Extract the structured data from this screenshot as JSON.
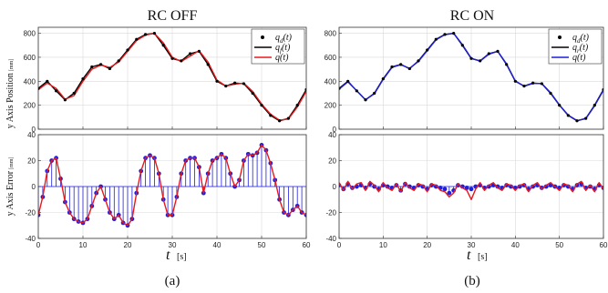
{
  "chart_data": [
    {
      "type": "line",
      "panel": "a-position",
      "title": "RC OFF",
      "ylabel": "y Axis Position",
      "yunit": "[mm]",
      "xlim": [
        0,
        60
      ],
      "ylim": [
        0,
        850
      ],
      "xticks": [
        0,
        10,
        20,
        30,
        40,
        50,
        60
      ],
      "yticks": [
        0,
        200,
        400,
        600,
        800
      ],
      "grid": true,
      "legend": {
        "position": "top-right",
        "entries": [
          "q_d(t)",
          "q_f(t)",
          "q(t)"
        ]
      },
      "x": [
        0,
        2,
        4,
        6,
        8,
        10,
        12,
        14,
        16,
        18,
        20,
        22,
        24,
        26,
        28,
        30,
        32,
        34,
        36,
        38,
        40,
        42,
        44,
        46,
        48,
        50,
        52,
        54,
        56,
        58,
        60
      ],
      "series": [
        {
          "name": "q_d(t)",
          "color": "#000000",
          "style": "dots",
          "values": [
            340,
            400,
            320,
            245,
            300,
            420,
            520,
            540,
            505,
            570,
            660,
            750,
            790,
            800,
            700,
            590,
            570,
            630,
            650,
            540,
            400,
            360,
            385,
            380,
            300,
            200,
            115,
            70,
            90,
            200,
            330
          ]
        },
        {
          "name": "q_f(t)",
          "color": "#000000",
          "style": "line",
          "values": [
            340,
            400,
            320,
            245,
            300,
            420,
            520,
            540,
            505,
            570,
            660,
            750,
            790,
            800,
            700,
            590,
            570,
            630,
            650,
            540,
            400,
            360,
            385,
            380,
            300,
            200,
            115,
            70,
            90,
            200,
            330
          ]
        },
        {
          "name": "q(t)",
          "color": "#e8191c",
          "style": "line",
          "values": [
            330,
            385,
            340,
            250,
            280,
            400,
            500,
            535,
            515,
            560,
            650,
            740,
            785,
            800,
            720,
            600,
            565,
            610,
            655,
            560,
            410,
            360,
            375,
            385,
            315,
            210,
            125,
            75,
            85,
            185,
            315
          ]
        }
      ]
    },
    {
      "type": "line",
      "panel": "a-error",
      "ylabel": "y Axis Error",
      "yunit": "[mm]",
      "xlabel": "t",
      "xunit": "[s]",
      "xlim": [
        0,
        60
      ],
      "ylim": [
        -40,
        40
      ],
      "xticks": [
        0,
        10,
        20,
        30,
        40,
        50,
        60
      ],
      "yticks": [
        -40,
        -20,
        0,
        20,
        40
      ],
      "grid": true,
      "x": [
        0,
        1,
        2,
        3,
        4,
        5,
        6,
        7,
        8,
        9,
        10,
        11,
        12,
        13,
        14,
        15,
        16,
        17,
        18,
        19,
        20,
        21,
        22,
        23,
        24,
        25,
        26,
        27,
        28,
        29,
        30,
        31,
        32,
        33,
        34,
        35,
        36,
        37,
        38,
        39,
        40,
        41,
        42,
        43,
        44,
        45,
        46,
        47,
        48,
        49,
        50,
        51,
        52,
        53,
        54,
        55,
        56,
        57,
        58,
        59,
        60
      ],
      "series": [
        {
          "name": "sampled error",
          "color": "#1f1fdd",
          "style": "stem",
          "values": [
            -22,
            -8,
            12,
            20,
            22,
            6,
            -12,
            -20,
            -25,
            -27,
            -28,
            -25,
            -15,
            -5,
            0,
            -10,
            -20,
            -25,
            -22,
            -28,
            -30,
            -25,
            -5,
            12,
            22,
            24,
            22,
            10,
            -10,
            -22,
            -22,
            -8,
            10,
            20,
            22,
            22,
            15,
            -5,
            10,
            20,
            22,
            25,
            22,
            10,
            0,
            5,
            20,
            25,
            24,
            26,
            32,
            28,
            18,
            5,
            -10,
            -20,
            -22,
            -18,
            -15,
            -20,
            -22
          ]
        },
        {
          "name": "continuous error",
          "color": "#e8191c",
          "style": "line",
          "values": [
            -22,
            -8,
            12,
            20,
            22,
            6,
            -12,
            -20,
            -25,
            -27,
            -28,
            -25,
            -15,
            -5,
            0,
            -10,
            -20,
            -25,
            -22,
            -28,
            -30,
            -25,
            -5,
            12,
            22,
            24,
            22,
            10,
            -10,
            -22,
            -22,
            -8,
            10,
            20,
            22,
            22,
            15,
            -5,
            10,
            20,
            22,
            25,
            22,
            10,
            0,
            5,
            20,
            25,
            24,
            26,
            32,
            28,
            18,
            5,
            -10,
            -20,
            -22,
            -18,
            -15,
            -20,
            -22
          ]
        }
      ]
    },
    {
      "type": "line",
      "panel": "b-position",
      "title": "RC ON",
      "xlim": [
        0,
        60
      ],
      "ylim": [
        0,
        850
      ],
      "xticks": [
        0,
        10,
        20,
        30,
        40,
        50,
        60
      ],
      "yticks": [
        0,
        200,
        400,
        600,
        800
      ],
      "grid": true,
      "legend": {
        "position": "top-right",
        "entries": [
          "q_d(t)",
          "q_r(t)",
          "q(t)"
        ]
      },
      "x": [
        0,
        2,
        4,
        6,
        8,
        10,
        12,
        14,
        16,
        18,
        20,
        22,
        24,
        26,
        28,
        30,
        32,
        34,
        36,
        38,
        40,
        42,
        44,
        46,
        48,
        50,
        52,
        54,
        56,
        58,
        60
      ],
      "series": [
        {
          "name": "q_d(t)",
          "color": "#000000",
          "style": "dots",
          "values": [
            340,
            400,
            320,
            245,
            300,
            420,
            520,
            540,
            505,
            570,
            660,
            750,
            790,
            800,
            700,
            590,
            570,
            630,
            650,
            540,
            400,
            360,
            385,
            380,
            300,
            200,
            115,
            70,
            90,
            200,
            330
          ]
        },
        {
          "name": "q_r(t)",
          "color": "#000000",
          "style": "line",
          "values": [
            340,
            400,
            320,
            245,
            300,
            420,
            520,
            540,
            505,
            570,
            660,
            750,
            790,
            800,
            700,
            590,
            570,
            630,
            650,
            540,
            400,
            360,
            385,
            380,
            300,
            200,
            115,
            70,
            90,
            200,
            330
          ]
        },
        {
          "name": "q(t)",
          "color": "#1f1fdd",
          "style": "line",
          "values": [
            335,
            395,
            322,
            245,
            295,
            415,
            515,
            538,
            508,
            565,
            655,
            745,
            788,
            800,
            705,
            592,
            568,
            625,
            650,
            545,
            403,
            358,
            382,
            382,
            305,
            203,
            118,
            72,
            88,
            195,
            325
          ]
        }
      ]
    },
    {
      "type": "line",
      "panel": "b-error",
      "xlabel": "t",
      "xunit": "[s]",
      "xlim": [
        0,
        60
      ],
      "ylim": [
        -40,
        40
      ],
      "xticks": [
        0,
        10,
        20,
        30,
        40,
        50,
        60
      ],
      "yticks": [
        -40,
        -20,
        0,
        20,
        40
      ],
      "grid": true,
      "x": [
        0,
        1,
        2,
        3,
        4,
        5,
        6,
        7,
        8,
        9,
        10,
        11,
        12,
        13,
        14,
        15,
        16,
        17,
        18,
        19,
        20,
        21,
        22,
        23,
        24,
        25,
        26,
        27,
        28,
        29,
        30,
        31,
        32,
        33,
        34,
        35,
        36,
        37,
        38,
        39,
        40,
        41,
        42,
        43,
        44,
        45,
        46,
        47,
        48,
        49,
        50,
        51,
        52,
        53,
        54,
        55,
        56,
        57,
        58,
        59,
        60
      ],
      "series": [
        {
          "name": "sampled error",
          "color": "#1f1fdd",
          "style": "stem",
          "values": [
            1,
            -2,
            2,
            -1,
            0,
            1,
            -1,
            2,
            0,
            -2,
            1,
            0,
            -1,
            1,
            -3,
            2,
            0,
            -1,
            1,
            0,
            -2,
            1,
            0,
            -1,
            -2,
            -5,
            -3,
            1,
            0,
            -1,
            -2,
            0,
            1,
            -1,
            0,
            1,
            0,
            -1,
            1,
            0,
            -1,
            0,
            1,
            -2,
            0,
            1,
            -1,
            0,
            1,
            0,
            -1,
            1,
            0,
            -2,
            1,
            2,
            -1,
            0,
            -2,
            1,
            -1
          ]
        },
        {
          "name": "continuous error",
          "color": "#e8191c",
          "style": "line",
          "values": [
            3,
            -3,
            4,
            -2,
            2,
            3,
            -3,
            4,
            1,
            -4,
            3,
            -1,
            -3,
            2,
            -4,
            3,
            -1,
            -3,
            2,
            1,
            -4,
            2,
            1,
            -3,
            -4,
            -8,
            -5,
            2,
            -1,
            -3,
            -10,
            -2,
            3,
            -3,
            1,
            3,
            -1,
            -3,
            2,
            1,
            -3,
            1,
            2,
            -4,
            1,
            3,
            -2,
            1,
            3,
            0,
            -3,
            2,
            1,
            -4,
            2,
            4,
            -3,
            1,
            -4,
            3,
            -2
          ]
        }
      ]
    }
  ],
  "labels": {
    "title_a": "RC OFF",
    "title_b": "RC ON",
    "ylabel_pos": "y Axis Position",
    "ylabel_err": "y Axis Error",
    "yunit": "[mm]",
    "xlabel": "t",
    "xunit": "[s]",
    "caption_a": "(a)",
    "caption_b": "(b)"
  },
  "legend_a": [
    {
      "base": "q",
      "sub": "d",
      "tail": "(t)"
    },
    {
      "base": "q",
      "sub": "f",
      "tail": "(t)"
    },
    {
      "base": "q",
      "sub": "",
      "tail": "(t)"
    }
  ],
  "legend_b": [
    {
      "base": "q",
      "sub": "d",
      "tail": "(t)"
    },
    {
      "base": "q",
      "sub": "r",
      "tail": "(t)"
    },
    {
      "base": "q",
      "sub": "",
      "tail": "(t)"
    }
  ]
}
